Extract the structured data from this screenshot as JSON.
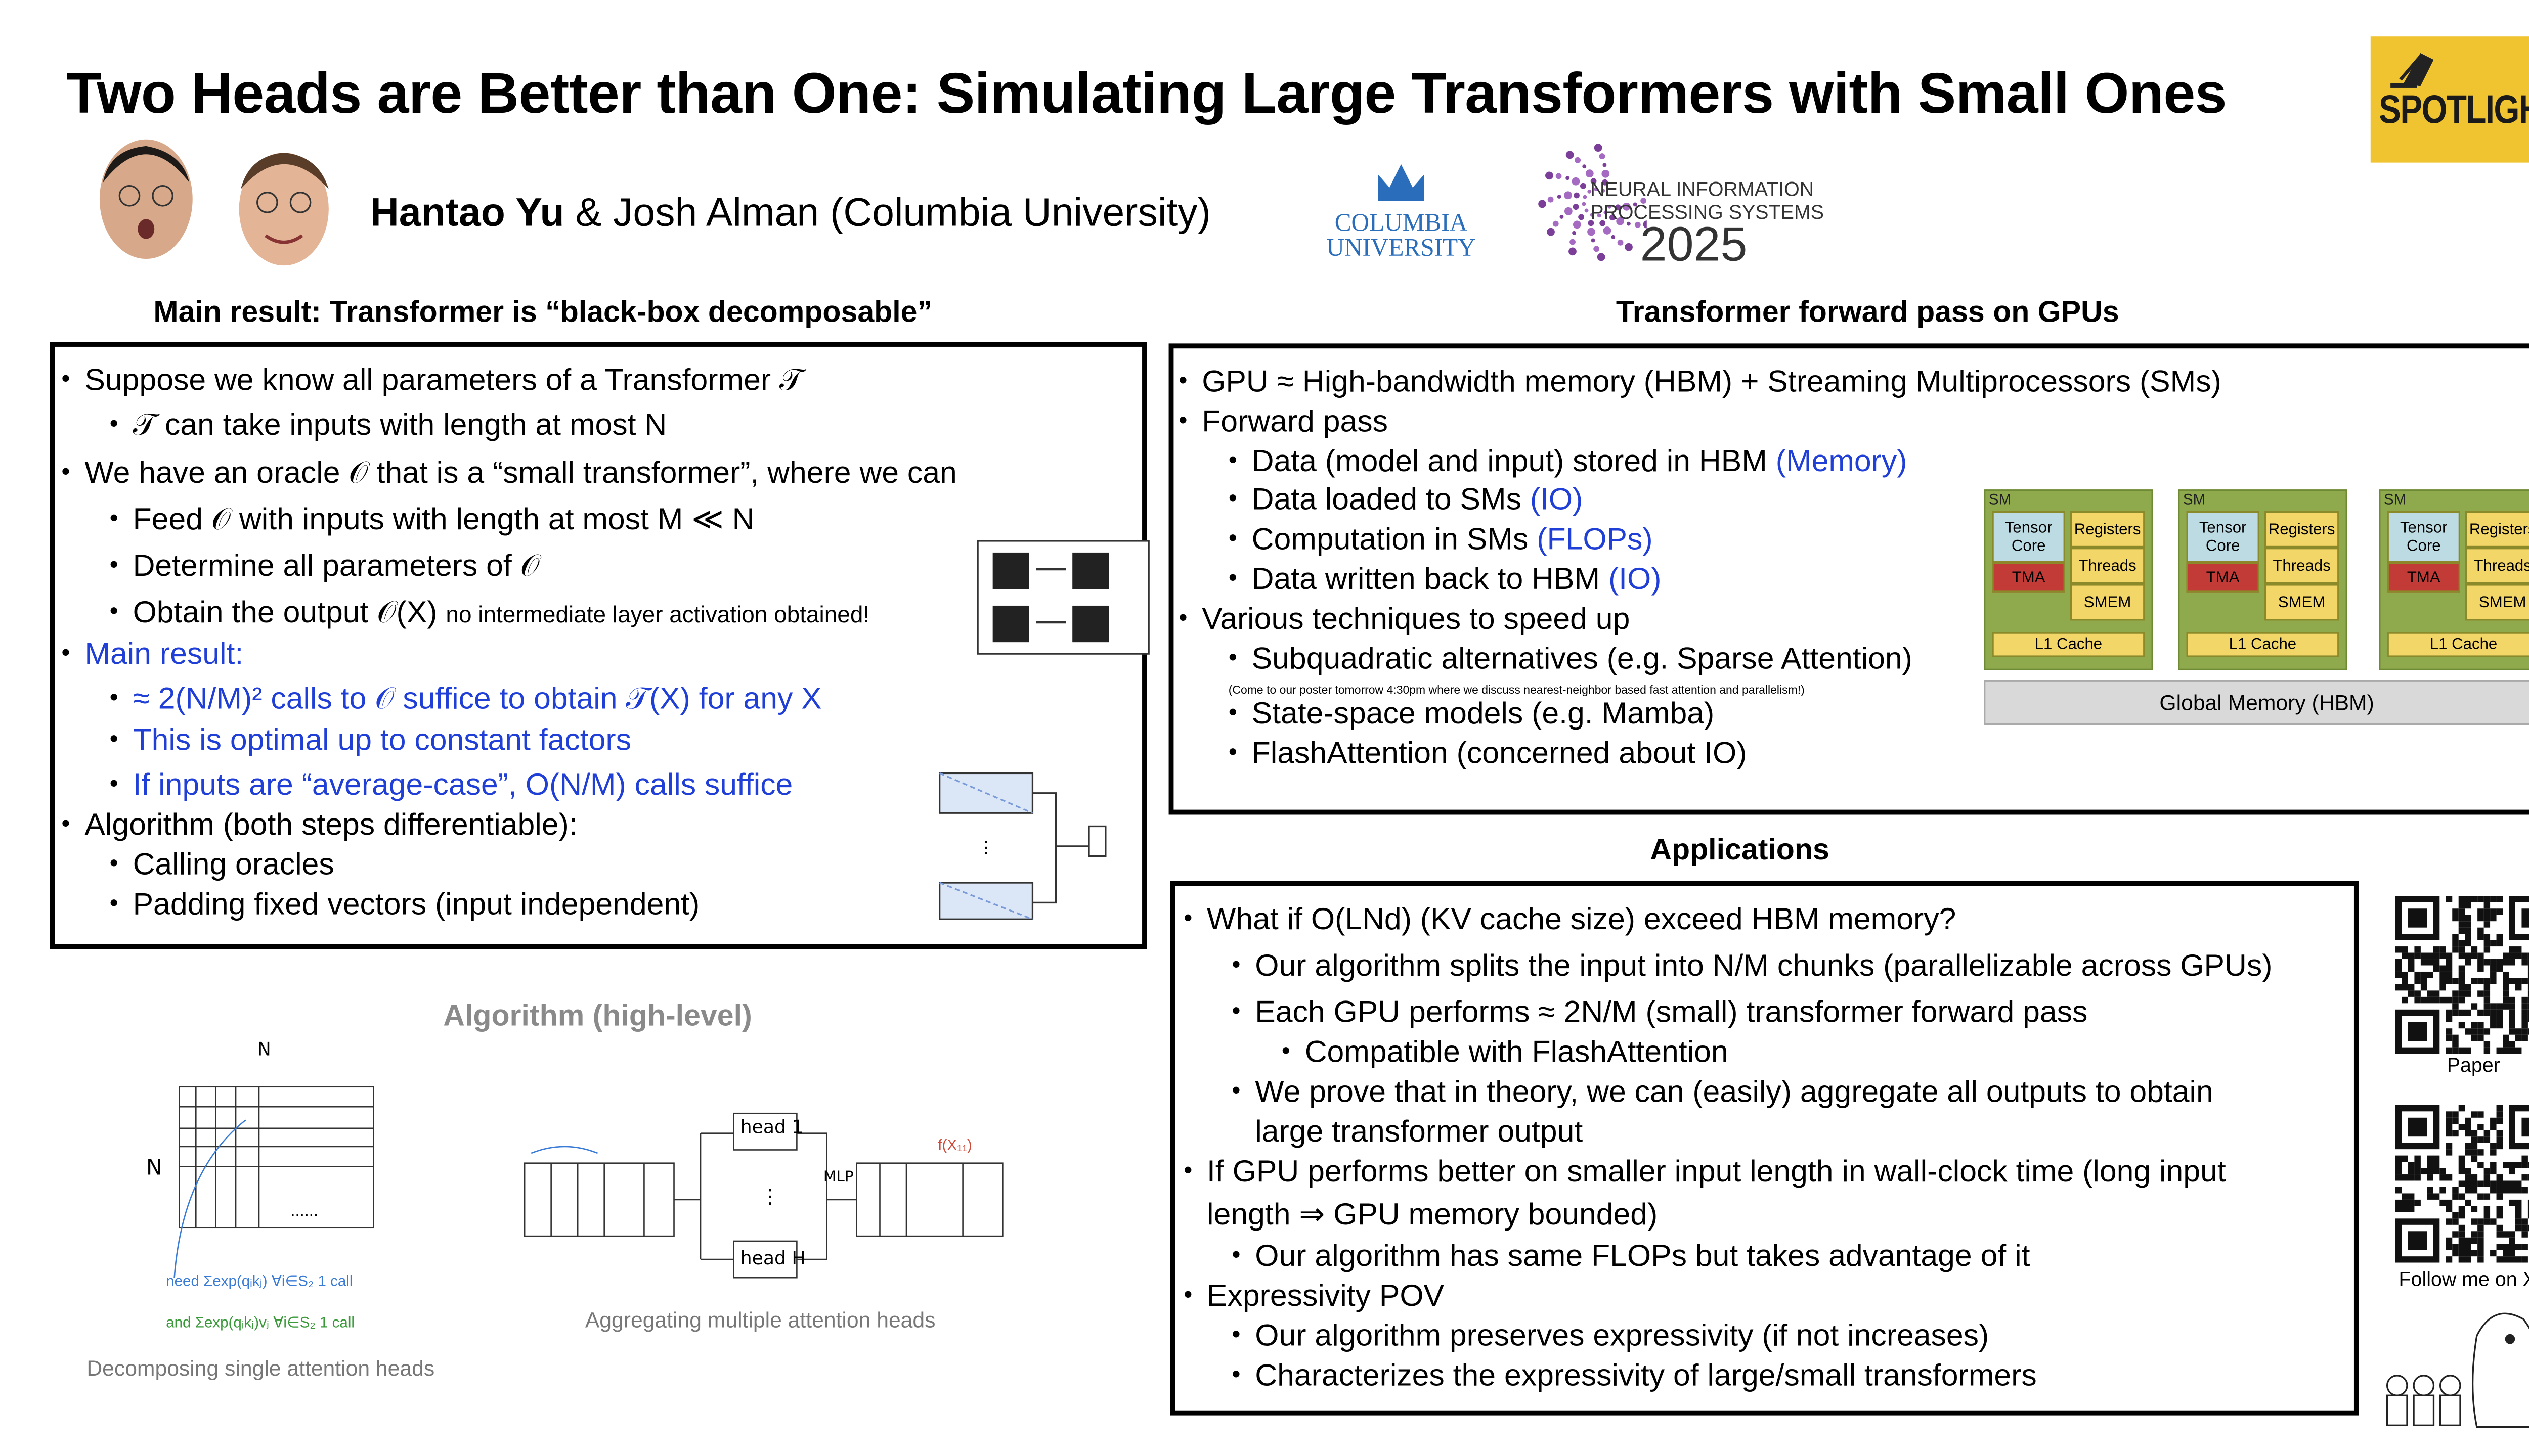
{
  "header": {
    "title": "Two Heads are Better than One: Simulating Large Transformers with Small Ones",
    "author_first": "Hantao Yu",
    "author_rest": "& Josh Alman (Columbia University)",
    "columbia_line1": "COLUMBIA",
    "columbia_line2": "UNIVERSITY",
    "neurips_line1": "NEURAL INFORMATION",
    "neurips_line2": "PROCESSING SYSTEMS",
    "neurips_year": "2025",
    "badge": "SPOTLIGHT"
  },
  "main_result": {
    "heading": "Main result: Transformer is “black-box decomposable”",
    "items": [
      "Suppose we know all parameters of a Transformer 𝒯",
      "𝒯 can take inputs with length at most N",
      "We have an oracle 𝒪 that is a “small transformer”, where we can",
      "Feed 𝒪 with inputs with length at most M ≪ N",
      "Determine all parameters of 𝒪",
      [
        "Obtain the output 𝒪(X)",
        "no intermediate layer activation obtained!"
      ],
      "Main result:",
      "≈ 2(N/M)² calls to 𝒪 suffice to obtain 𝒯(X) for any X",
      "This is optimal up to constant factors",
      "If inputs are “average-case”, O(N/M) calls suffice",
      "Algorithm (both steps differentiable):",
      "Calling oracles",
      "Padding fixed vectors (input independent)"
    ]
  },
  "gpu": {
    "heading": "Transformer forward pass on GPUs",
    "items": [
      "GPU ≈ High-bandwidth memory (HBM) + Streaming Multiprocessors (SMs)",
      "Forward pass",
      [
        "Data (model and input) stored in HBM",
        "(Memory)"
      ],
      [
        "Data loaded to SMs",
        "(IO)"
      ],
      [
        "Computation in SMs",
        "(FLOPs)"
      ],
      [
        "Data written back to HBM",
        "(IO)"
      ],
      "Various techniques to speed up",
      "Subquadratic alternatives (e.g. Sparse Attention)",
      "(Come to our poster tomorrow 4:30pm where we discuss nearest-neighbor based fast attention and parallelism!)",
      "State-space models (e.g. Mamba)",
      "FlashAttention (concerned about IO)"
    ],
    "diagram": {
      "sm": "SM",
      "tensor_core": "Tensor Core",
      "tma": "TMA",
      "registers": "Registers",
      "threads": "Threads",
      "smem": "SMEM",
      "l1": "L1 Cache",
      "global": "Global Memory (HBM)"
    }
  },
  "applications": {
    "heading": "Applications",
    "items": [
      "What if O(LNd) (KV cache size) exceed HBM memory?",
      "Our algorithm splits the input into N/M chunks (parallelizable across GPUs)",
      "Each GPU performs ≈ 2N/M (small) transformer forward pass",
      "Compatible with FlashAttention",
      "We prove that in theory, we can (easily) aggregate all outputs to obtain",
      "large transformer output",
      "If GPU performs better on smaller input length in wall-clock time (long input",
      "length ⇒ GPU memory bounded)",
      "Our algorithm has same FLOPs but takes advantage of it",
      "Expressivity POV",
      "Our algorithm preserves expressivity (if not increases)",
      "Characterizes the expressivity of large/small transformers"
    ]
  },
  "algorithm": {
    "heading": "Algorithm (high-level)",
    "caption_left": "Decomposing single attention heads",
    "caption_right": "Aggregating multiple attention heads",
    "grid_label": "N",
    "head_first": "head 1",
    "head_last": "head H",
    "mlp": "MLP"
  },
  "links": {
    "paper": "Paper",
    "follow": "Follow me on X!"
  }
}
